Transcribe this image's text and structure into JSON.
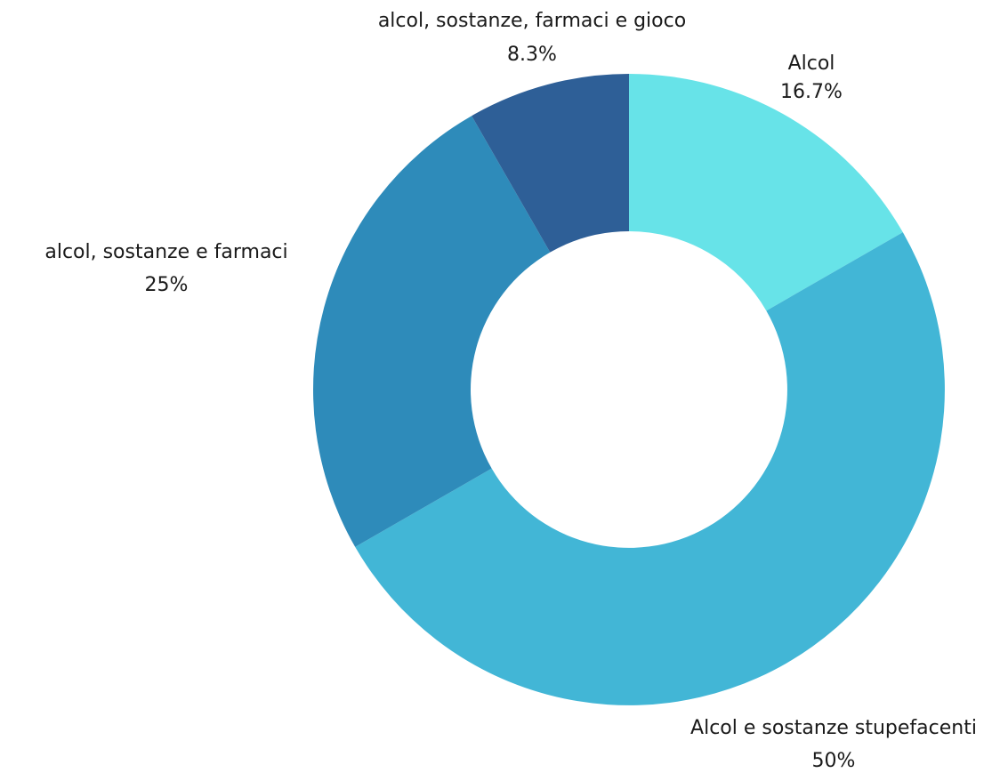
{
  "chart_data": {
    "type": "pie",
    "donut": true,
    "title": "",
    "slices": [
      {
        "label": "Alcol",
        "value": 16.7,
        "percent_label": "16.7%",
        "color": "#67E3E8"
      },
      {
        "label": "Alcol e sostanze stupefacenti",
        "value": 50,
        "percent_label": "50%",
        "color": "#42B6D6"
      },
      {
        "label": "alcol, sostanze e farmaci",
        "value": 25,
        "percent_label": "25%",
        "color": "#2E8BBA"
      },
      {
        "label": "alcol, sostanze, farmaci e gioco",
        "value": 8.3,
        "percent_label": "8.3%",
        "color": "#2E5F97"
      }
    ],
    "start_angle": "12 o'clock",
    "direction": "clockwise"
  }
}
